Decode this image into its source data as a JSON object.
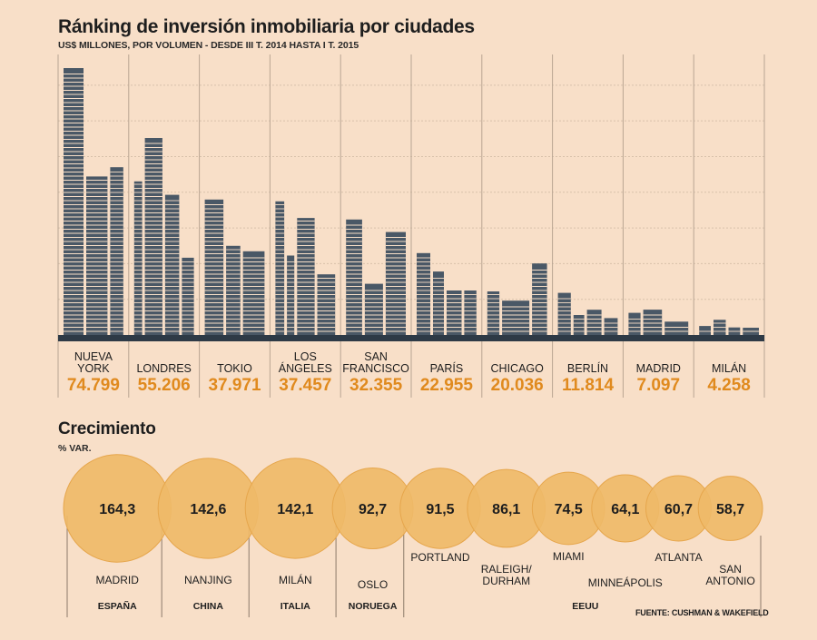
{
  "title": "Ránking de inversión inmobiliaria por ciudades",
  "subtitle": "US$ MILLONES, POR VOLUMEN - DESDE III T. 2014 HASTA I T. 2015",
  "growth": {
    "title": "Crecimiento",
    "subtitle": "% VAR."
  },
  "source": "FUENTE: CUSHMAN & WAKEFIELD",
  "colors": {
    "background": "#f8dfc8",
    "building": "#4a5866",
    "axis": "#2e3a46",
    "value": "#e08a1e",
    "bubble": "#efba68",
    "bubble_stroke": "#e6a64c"
  },
  "chart_data": [
    {
      "type": "bar",
      "title": "Ránking de inversión inmobiliaria por ciudades",
      "subtitle": "US$ MILLONES, POR VOLUMEN - DESDE III T. 2014 HASTA I T. 2015",
      "categories": [
        [
          "NUEVA",
          "YORK"
        ],
        [
          "LONDRES"
        ],
        [
          "TOKIO"
        ],
        [
          "LOS",
          "ÁNGELES"
        ],
        [
          "SAN",
          "FRANCISCO"
        ],
        [
          "PARÍS"
        ],
        [
          "CHICAGO"
        ],
        [
          "BERLÍN"
        ],
        [
          "MADRID"
        ],
        [
          "MILÁN"
        ]
      ],
      "values": [
        74799,
        55206,
        37971,
        37457,
        32355,
        22955,
        20036,
        11814,
        7097,
        4258
      ],
      "value_labels": [
        "74.799",
        "55.206",
        "37.971",
        "37.457",
        "32.355",
        "22.955",
        "20.036",
        "11.814",
        "7.097",
        "4.258"
      ],
      "ylim": [
        0,
        80000
      ],
      "unit": "US$ millones"
    },
    {
      "type": "bubble",
      "title": "Crecimiento",
      "ylabel": "% VAR.",
      "categories": [
        "MADRID",
        "NANJING",
        "MILÁN",
        "OSLO",
        "PORTLAND",
        "RALEIGH/ DURHAM",
        "MIAMI",
        "MINNEÁPOLIS",
        "ATLANTA",
        "SAN ANTONIO"
      ],
      "labels": [
        [
          "MADRID"
        ],
        [
          "NANJING"
        ],
        [
          "MILÁN"
        ],
        [
          "OSLO"
        ],
        [
          "PORTLAND"
        ],
        [
          "RALEIGH/",
          "DURHAM"
        ],
        [
          "MIAMI"
        ],
        [
          "MINNEÁPOLIS"
        ],
        [
          "ATLANTA"
        ],
        [
          "SAN",
          "ANTONIO"
        ]
      ],
      "values": [
        164.3,
        142.6,
        142.1,
        92.7,
        91.5,
        86.1,
        74.5,
        64.1,
        60.7,
        58.7
      ],
      "value_labels": [
        "164,3",
        "142,6",
        "142,1",
        "92,7",
        "91,5",
        "86,1",
        "74,5",
        "64,1",
        "60,7",
        "58,7"
      ],
      "countries": [
        {
          "name": "ESPAÑA",
          "members": [
            0
          ]
        },
        {
          "name": "CHINA",
          "members": [
            1
          ]
        },
        {
          "name": "ITALIA",
          "members": [
            2
          ]
        },
        {
          "name": "NORUEGA",
          "members": [
            3
          ]
        },
        {
          "name": "EEUU",
          "members": [
            4,
            5,
            6,
            7,
            8,
            9
          ]
        }
      ]
    }
  ]
}
